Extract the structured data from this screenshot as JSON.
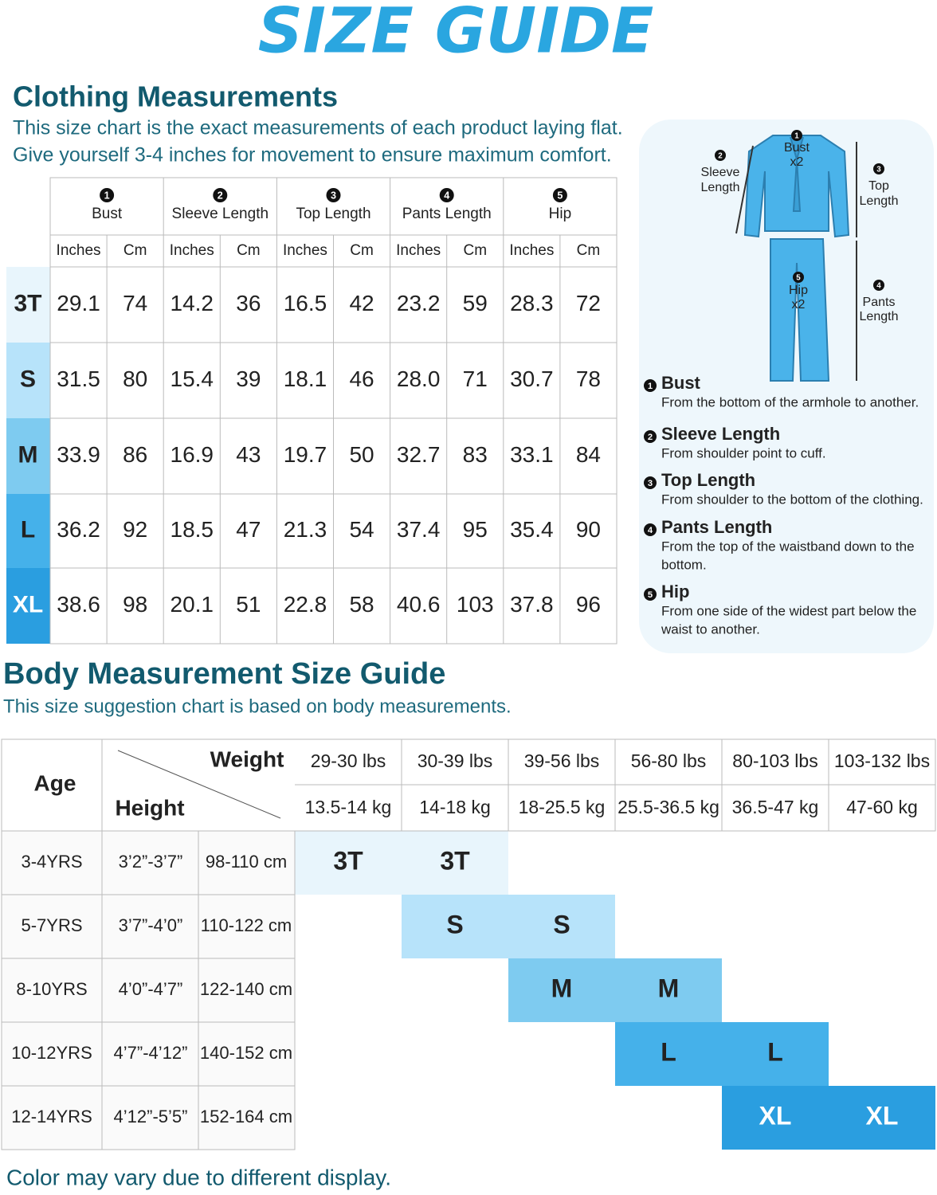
{
  "title": "SIZE GUIDE",
  "clothing": {
    "heading": "Clothing Measurements",
    "description": [
      "This size chart is the exact measurements of each product laying flat.",
      "Give yourself 3-4 inches for movement to ensure maximum comfort."
    ],
    "table": {
      "groups": [
        {
          "marker": "1",
          "label": "Bust",
          "units": [
            "Inches",
            "Cm"
          ]
        },
        {
          "marker": "2",
          "label": "Sleeve Length",
          "units": [
            "Inches",
            "Cm"
          ]
        },
        {
          "marker": "3",
          "label": "Top Length",
          "units": [
            "Inches",
            "Cm"
          ]
        },
        {
          "marker": "4",
          "label": "Pants Length",
          "units": [
            "Inches",
            "Cm"
          ]
        },
        {
          "marker": "5",
          "label": "Hip",
          "units": [
            "Inches",
            "Cm"
          ]
        }
      ],
      "rows": [
        {
          "size": "3T",
          "values": [
            "29.1",
            "74",
            "14.2",
            "36",
            "16.5",
            "42",
            "23.2",
            "59",
            "28.3",
            "72"
          ]
        },
        {
          "size": "S",
          "values": [
            "31.5",
            "80",
            "15.4",
            "39",
            "18.1",
            "46",
            "28.0",
            "71",
            "30.7",
            "78"
          ]
        },
        {
          "size": "M",
          "values": [
            "33.9",
            "86",
            "16.9",
            "43",
            "19.7",
            "50",
            "32.7",
            "83",
            "33.1",
            "84"
          ]
        },
        {
          "size": "L",
          "values": [
            "36.2",
            "92",
            "18.5",
            "47",
            "21.3",
            "54",
            "37.4",
            "95",
            "35.4",
            "90"
          ]
        },
        {
          "size": "XL",
          "values": [
            "38.6",
            "98",
            "20.1",
            "51",
            "22.8",
            "58",
            "40.6",
            "103",
            "37.8",
            "96"
          ]
        }
      ]
    }
  },
  "diagram": {
    "labels": [
      {
        "marker": "1",
        "text": [
          "Bust",
          "x2"
        ]
      },
      {
        "marker": "2",
        "text": [
          "Sleeve",
          "Length"
        ]
      },
      {
        "marker": "3",
        "text": [
          "Top",
          "Length"
        ]
      },
      {
        "marker": "4",
        "text": [
          "Pants",
          "Length"
        ]
      },
      {
        "marker": "5",
        "text": [
          "Hip",
          "x2"
        ]
      }
    ],
    "definitions": [
      {
        "marker": "1",
        "term": "Bust",
        "description": [
          "From the bottom of the armhole to another."
        ]
      },
      {
        "marker": "2",
        "term": "Sleeve Length",
        "description": [
          "From shoulder point to cuff."
        ]
      },
      {
        "marker": "3",
        "term": "Top Length",
        "description": [
          "From shoulder to the bottom of the clothing."
        ]
      },
      {
        "marker": "4",
        "term": "Pants Length",
        "description": [
          "From the top of the waistband down to the",
          "bottom."
        ]
      },
      {
        "marker": "5",
        "term": "Hip",
        "description": [
          "From one side of the widest part below the",
          "waist to another."
        ]
      }
    ]
  },
  "body": {
    "heading": "Body Measurement Size Guide",
    "description": "This size suggestion chart is based on body measurements.",
    "table": {
      "age_header": "Age",
      "weight_header": "Weight",
      "height_header": "Height",
      "weights": [
        {
          "lbs": "29-30 lbs",
          "kg": "13.5-14 kg"
        },
        {
          "lbs": "30-39 lbs",
          "kg": "14-18 kg"
        },
        {
          "lbs": "39-56 lbs",
          "kg": "18-25.5 kg"
        },
        {
          "lbs": "56-80 lbs",
          "kg": "25.5-36.5 kg"
        },
        {
          "lbs": "80-103 lbs",
          "kg": "36.5-47 kg"
        },
        {
          "lbs": "103-132 lbs",
          "kg": "47-60 kg"
        }
      ],
      "rows": [
        {
          "age": "3-4YRS",
          "height_ft": "3’2”-3’7”",
          "height_cm": "98-110 cm",
          "sizes": [
            "3T",
            "3T",
            null,
            null,
            null,
            null
          ]
        },
        {
          "age": "5-7YRS",
          "height_ft": "3’7”-4’0”",
          "height_cm": "110-122 cm",
          "sizes": [
            null,
            "S",
            "S",
            null,
            null,
            null
          ]
        },
        {
          "age": "8-10YRS",
          "height_ft": "4’0”-4’7”",
          "height_cm": "122-140 cm",
          "sizes": [
            null,
            null,
            "M",
            "M",
            null,
            null
          ]
        },
        {
          "age": "10-12YRS",
          "height_ft": "4’7”-4’12”",
          "height_cm": "140-152 cm",
          "sizes": [
            null,
            null,
            null,
            "L",
            "L",
            null
          ]
        },
        {
          "age": "12-14YRS",
          "height_ft": "4’12”-5’5”",
          "height_cm": "152-164 cm",
          "sizes": [
            null,
            null,
            null,
            null,
            "XL",
            "XL"
          ]
        }
      ]
    }
  },
  "note": "Color may vary due to different display."
}
